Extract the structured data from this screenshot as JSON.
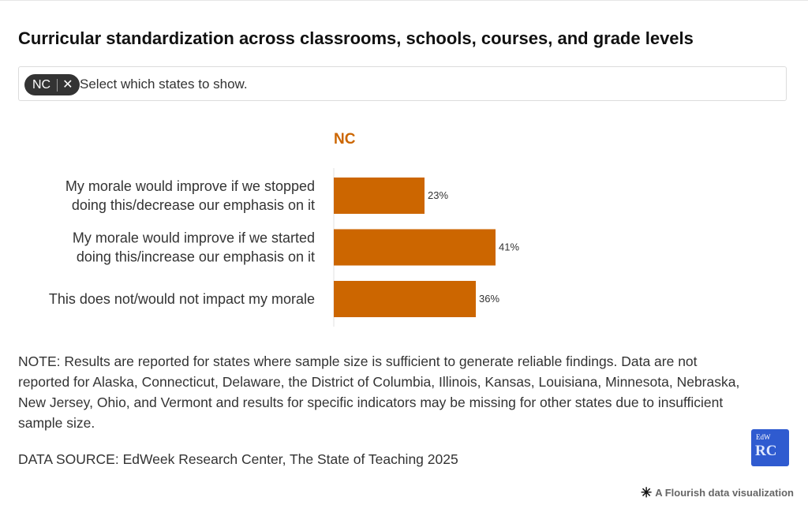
{
  "title": "Curricular standardization across classrooms, schools, courses, and grade levels",
  "filter": {
    "selected_chip": "NC",
    "remove_icon": "close-icon",
    "placeholder": "Select which states to show."
  },
  "chart_data": {
    "type": "bar",
    "orientation": "horizontal",
    "panel_title": "NC",
    "categories": [
      [
        "My morale would improve if we stopped",
        "doing this/decrease our emphasis on it"
      ],
      [
        "My morale would improve if we started",
        "doing this/increase our emphasis on it"
      ],
      [
        "This does not/would not impact my morale"
      ]
    ],
    "values": [
      23,
      41,
      36
    ],
    "value_labels": [
      "23%",
      "41%",
      "36%"
    ],
    "unit": "%",
    "xlim": [
      0,
      100
    ],
    "bar_color": "#cc6600",
    "title_color": "#cc6600",
    "grid": false,
    "legend": "none"
  },
  "note": "NOTE: Results are reported for states where sample size is sufficient to generate reliable findings. Data are not reported for Alaska, Connecticut, Delaware, the District of Columbia, Illinois, Kansas, Louisiana, Minnesota, Nebraska, New Jersey, Ohio, and Vermont and results for specific indicators may be missing for other states due to insufficient sample size.",
  "source": "DATA SOURCE: EdWeek Research Center, The State of Teaching 2025",
  "logo": {
    "top_text": "EdW",
    "main_text": "RC"
  },
  "attribution": {
    "icon": "flourish-asterisk-icon",
    "text": "A Flourish data visualization"
  }
}
